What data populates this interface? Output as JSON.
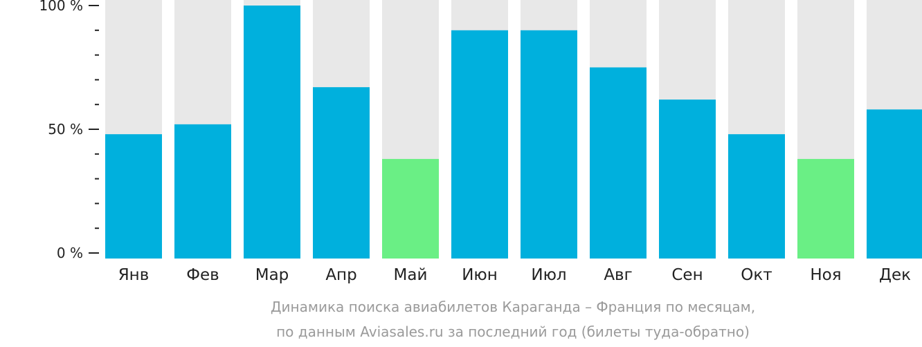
{
  "chart_data": {
    "type": "bar",
    "categories": [
      "Янв",
      "Фев",
      "Мар",
      "Апр",
      "Май",
      "Июн",
      "Июл",
      "Авг",
      "Сен",
      "Окт",
      "Ноя",
      "Дек"
    ],
    "values": [
      48,
      52,
      100,
      67,
      38,
      90,
      90,
      75,
      62,
      48,
      38,
      58
    ],
    "highlight": [
      false,
      false,
      false,
      false,
      true,
      false,
      false,
      false,
      false,
      false,
      true,
      false
    ],
    "ylim": [
      0,
      100
    ],
    "yticks": [
      {
        "value": 0,
        "label": "0 %"
      },
      {
        "value": 50,
        "label": "50 %"
      },
      {
        "value": 100,
        "label": "100 %"
      }
    ],
    "minor_tick_step": 10,
    "grid": false,
    "legend": "none",
    "colors": {
      "bar": "#00b0dd",
      "bar_highlight": "#6aef85",
      "bar_background": "#e8e8e8",
      "axis": "#222222",
      "caption": "#9a9a9a"
    }
  },
  "caption": {
    "line1": "Динамика поиска авиабилетов Караганда – Франция по месяцам,",
    "line2": "по данным Aviasales.ru за последний год (билеты туда-обратно)"
  }
}
